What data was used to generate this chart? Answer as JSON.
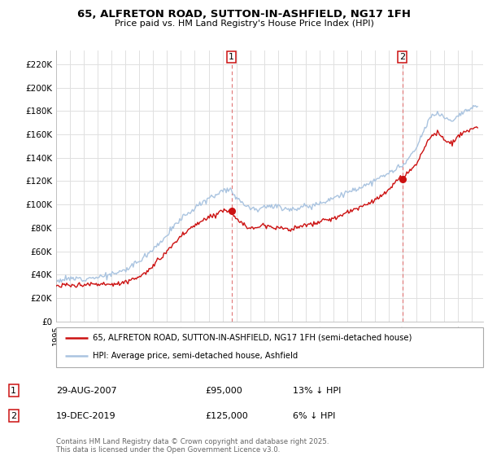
{
  "title": "65, ALFRETON ROAD, SUTTON-IN-ASHFIELD, NG17 1FH",
  "subtitle": "Price paid vs. HM Land Registry's House Price Index (HPI)",
  "ylabel_ticks": [
    "£0",
    "£20K",
    "£40K",
    "£60K",
    "£80K",
    "£100K",
    "£120K",
    "£140K",
    "£160K",
    "£180K",
    "£200K",
    "£220K"
  ],
  "ytick_vals": [
    0,
    20000,
    40000,
    60000,
    80000,
    100000,
    120000,
    140000,
    160000,
    180000,
    200000,
    220000
  ],
  "ylim": [
    0,
    232000
  ],
  "legend_line1": "65, ALFRETON ROAD, SUTTON-IN-ASHFIELD, NG17 1FH (semi-detached house)",
  "legend_line2": "HPI: Average price, semi-detached house, Ashfield",
  "sale1_label": "1",
  "sale1_date": "29-AUG-2007",
  "sale1_price": "£95,000",
  "sale1_hpi": "13% ↓ HPI",
  "sale1_year": 2007.66,
  "sale1_value": 95000,
  "sale2_label": "2",
  "sale2_date": "19-DEC-2019",
  "sale2_price": "£125,000",
  "sale2_hpi": "6% ↓ HPI",
  "sale2_year": 2019.97,
  "sale2_value": 125000,
  "hpi_color": "#aac4e0",
  "price_color": "#cc1111",
  "vline_color": "#dd6666",
  "background_color": "#ffffff",
  "grid_color": "#e0e0e0",
  "footnote": "Contains HM Land Registry data © Crown copyright and database right 2025.\nThis data is licensed under the Open Government Licence v3.0."
}
